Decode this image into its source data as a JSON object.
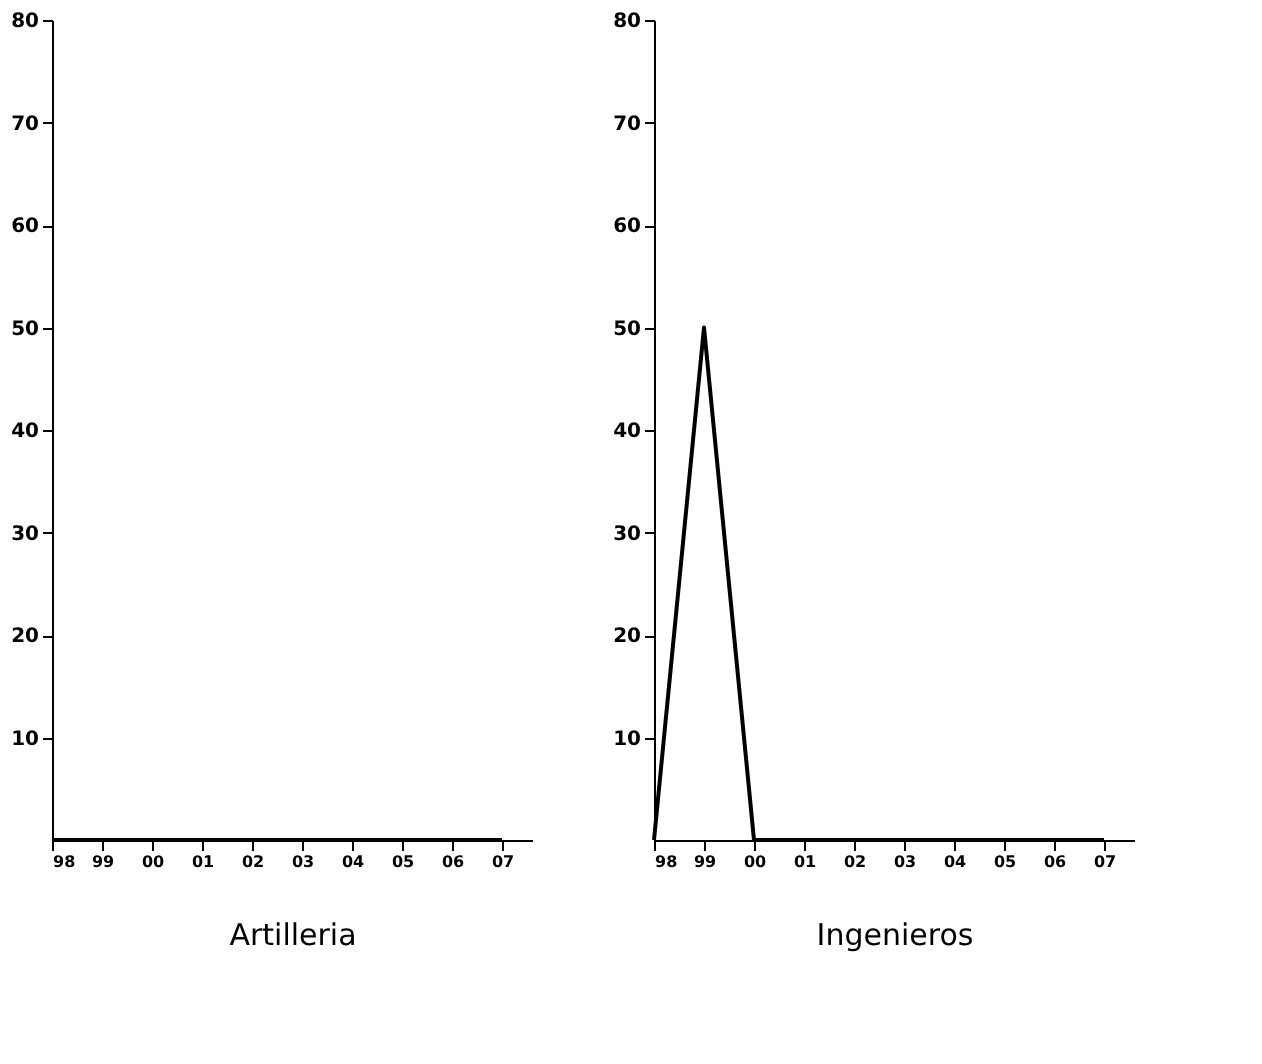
{
  "chart_data": [
    {
      "type": "line",
      "xlabel": "Artilleria",
      "categories": [
        "98",
        "99",
        "00",
        "01",
        "02",
        "03",
        "04",
        "05",
        "06",
        "07"
      ],
      "series": [
        {
          "color": "#000000",
          "values": [
            0,
            0,
            0,
            0,
            0,
            0,
            0,
            0,
            0,
            0
          ]
        }
      ],
      "ylim": [
        0,
        80
      ],
      "yticks": [
        10,
        20,
        30,
        40,
        50,
        60,
        70,
        80
      ],
      "grid": false,
      "legend": false
    },
    {
      "type": "line",
      "xlabel": "Ingenieros",
      "categories": [
        "98",
        "99",
        "00",
        "01",
        "02",
        "03",
        "04",
        "05",
        "06",
        "07"
      ],
      "series": [
        {
          "color": "#000000",
          "values": [
            0,
            50,
            0,
            0,
            0,
            0,
            0,
            0,
            0,
            0
          ]
        }
      ],
      "ylim": [
        0,
        80
      ],
      "yticks": [
        10,
        20,
        30,
        40,
        50,
        60,
        70,
        80
      ],
      "grid": false,
      "legend": false
    }
  ]
}
